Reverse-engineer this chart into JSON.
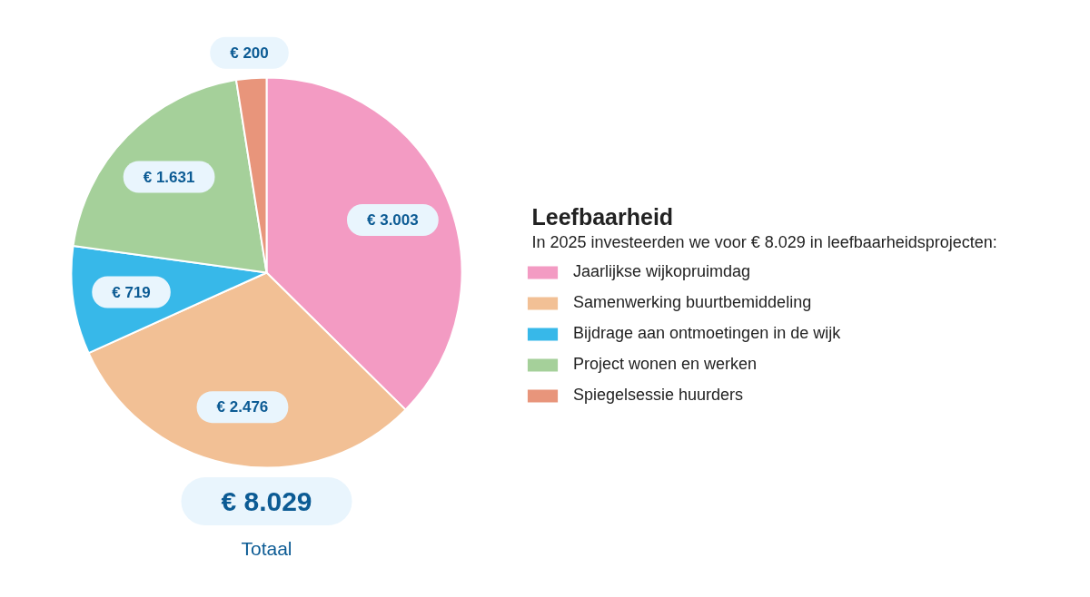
{
  "chart_data": {
    "type": "pie",
    "title": "Leefbaarheid",
    "subtitle": "In 2025 investeerden we voor € 8.029 in leefbaarheidsprojecten:",
    "categories": [
      "Jaarlijkse wijkopruimdag",
      "Samenwerking buurtbemiddeling",
      "Bijdrage aan ontmoetingen in de wijk",
      "Project wonen en werken",
      "Spiegelsessie huurders"
    ],
    "values": [
      3003,
      2476,
      719,
      1631,
      200
    ],
    "colors": [
      "#f39bc3",
      "#f2c095",
      "#37b8e9",
      "#a5d09a",
      "#e8957b"
    ],
    "value_labels": [
      "€ 3.003",
      "€ 2.476",
      "€ 719",
      "€ 1.631",
      "€ 200"
    ],
    "annotations": [
      "€ 8.029",
      "Totaal"
    ],
    "legend": "right"
  }
}
